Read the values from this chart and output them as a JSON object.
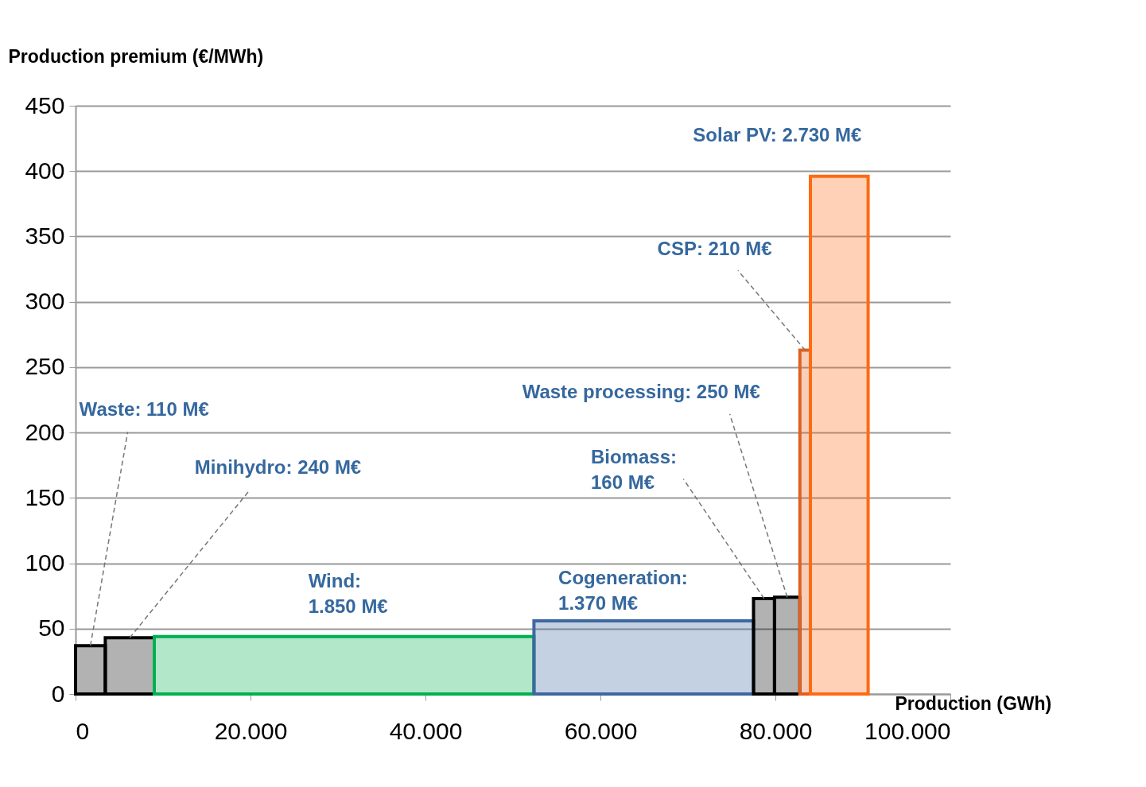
{
  "chart_data": {
    "type": "histogram",
    "xlabel": "Production (GWh)",
    "ylabel": "Production premium (€/MWh)",
    "bins": [
      0,
      3400,
      9000,
      52400,
      77500,
      79900,
      82800,
      84000,
      90600
    ],
    "values": [
      37,
      43,
      44,
      56,
      73,
      74,
      263,
      396
    ],
    "colors": [
      "#000000",
      "#000000",
      "#00b050",
      "#3d68a0",
      "#000000",
      "#000000",
      "#e06020",
      "#ff6a13"
    ],
    "xlim": [
      0,
      100000
    ],
    "xticks": [
      0,
      {
        "value": 20000,
        "label": "20.000"
      },
      {
        "value": 40000,
        "label": "40.000"
      },
      {
        "value": 60000,
        "label": "60.000"
      },
      {
        "value": 80000,
        "label": "80.000"
      },
      {
        "value": 100000,
        "label": "100.000"
      }
    ],
    "ylim": [
      0,
      450
    ],
    "yticks": [
      0,
      50,
      100,
      150,
      200,
      250,
      300,
      350,
      400,
      450
    ],
    "grid": "y",
    "annotations": [
      {
        "text": "Waste: 110 M€",
        "x": 1700,
        "y": 37
      },
      {
        "text": "Minihydro: 240 M€",
        "x": 6200,
        "y": 43
      },
      {
        "text": "Wind:\n1.850 M€",
        "x": 30700,
        "y": 44
      },
      {
        "text": "Cogeneration:\n1.370 M€",
        "x": 65000,
        "y": 56
      },
      {
        "text": "Biomass:\n160 M€",
        "x": 78700,
        "y": 73
      },
      {
        "text": "Waste processing: 250 M€",
        "x": 81350,
        "y": 74
      },
      {
        "text": "CSP: 210 M€",
        "x": 83400,
        "y": 263
      },
      {
        "text": "Solar  PV: 2.730 M€",
        "x": 87300,
        "y": 396
      }
    ]
  }
}
